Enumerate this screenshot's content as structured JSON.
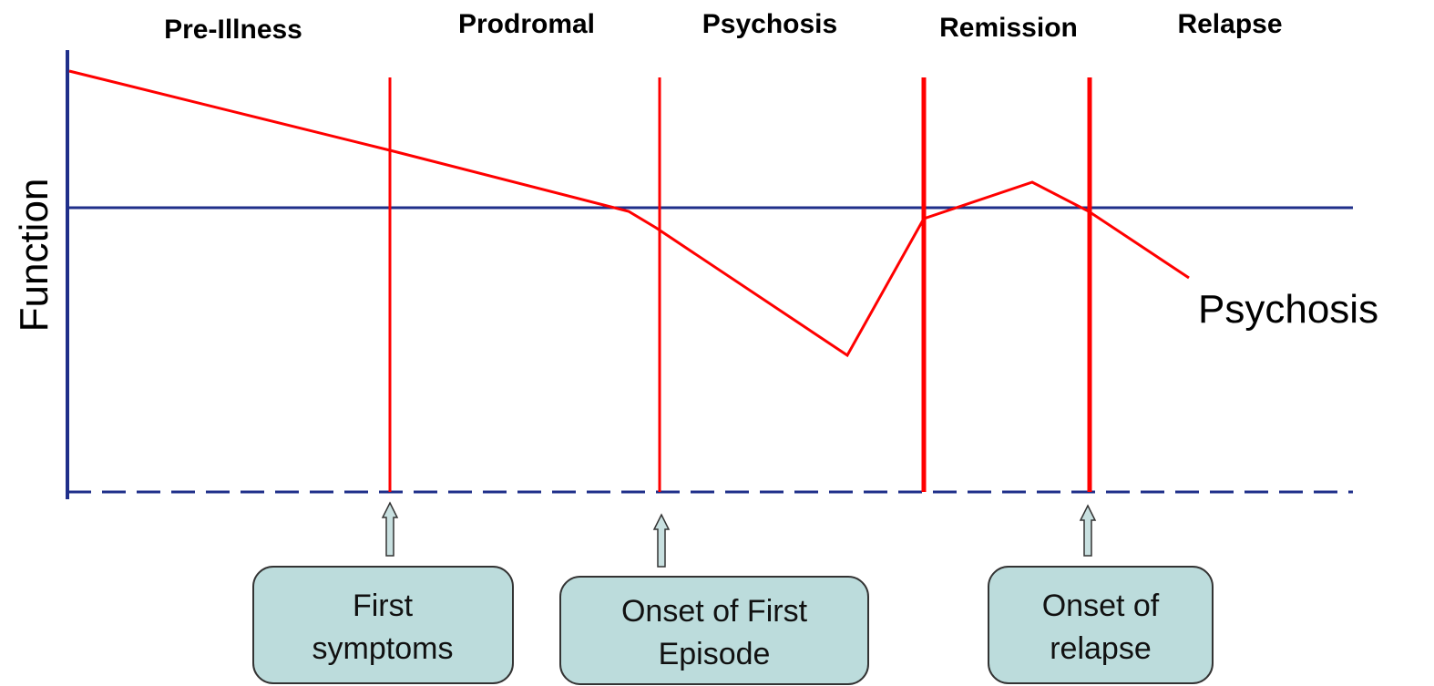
{
  "phases": [
    "Pre-Illness",
    "Prodromal",
    "Psychosis",
    "Remission",
    "Relapse"
  ],
  "y_axis_label": "Function",
  "curve_label": "Psychosis",
  "boxes": [
    {
      "lines": [
        "First",
        "symptoms"
      ]
    },
    {
      "lines": [
        "Onset of First",
        "Episode"
      ]
    },
    {
      "lines": [
        "Onset of",
        "relapse"
      ]
    }
  ]
}
